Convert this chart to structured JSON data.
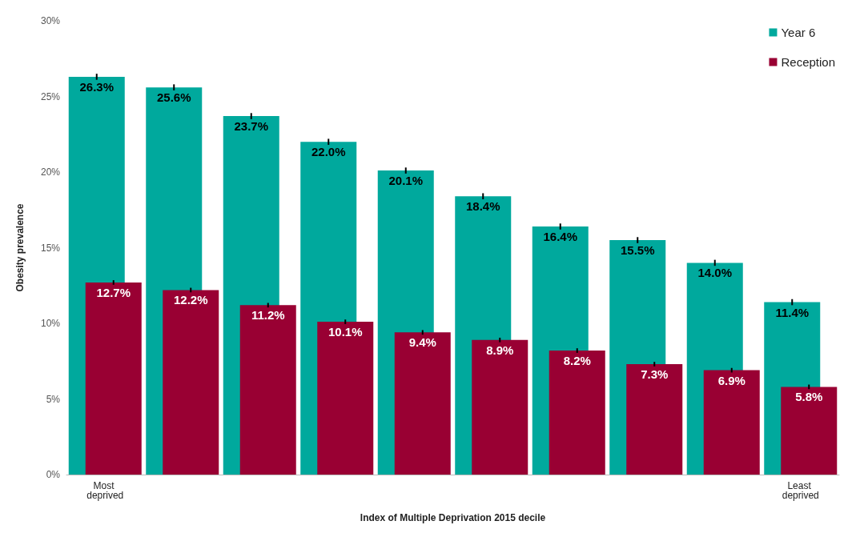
{
  "chart_data": {
    "type": "bar",
    "xlabel": "Index of Multiple Deprivation 2015 decile",
    "ylabel": "Obesity prevalence",
    "categories": [
      "Most deprived",
      null,
      null,
      null,
      null,
      null,
      null,
      null,
      null,
      "Least deprived"
    ],
    "series": [
      {
        "name": "Year 6",
        "color": "#00a99d",
        "values": [
          26.3,
          25.6,
          23.7,
          22.0,
          20.1,
          18.4,
          16.4,
          15.5,
          14.0,
          11.4
        ],
        "errors": [
          0.2,
          0.2,
          0.2,
          0.2,
          0.2,
          0.2,
          0.2,
          0.2,
          0.2,
          0.2
        ],
        "value_labels": [
          "26.3%",
          "25.6%",
          "23.7%",
          "22.0%",
          "20.1%",
          "18.4%",
          "16.4%",
          "15.5%",
          "14.0%",
          "11.4%"
        ]
      },
      {
        "name": "Reception",
        "color": "#990033",
        "values": [
          12.7,
          12.2,
          11.2,
          10.1,
          9.4,
          8.9,
          8.2,
          7.3,
          6.9,
          5.8
        ],
        "errors": [
          0.15,
          0.15,
          0.15,
          0.15,
          0.15,
          0.15,
          0.15,
          0.15,
          0.15,
          0.15
        ],
        "value_labels": [
          "12.7%",
          "12.2%",
          "11.2%",
          "10.1%",
          "9.4%",
          "8.9%",
          "8.2%",
          "7.3%",
          "6.9%",
          "5.8%"
        ]
      }
    ],
    "ylim": [
      0,
      30
    ],
    "yticks": [
      {
        "value": 0,
        "label": "0%"
      },
      {
        "value": 5,
        "label": "5%"
      },
      {
        "value": 10,
        "label": "10%"
      },
      {
        "value": 15,
        "label": "15%"
      },
      {
        "value": 20,
        "label": "20%"
      },
      {
        "value": 25,
        "label": "25%"
      },
      {
        "value": 30,
        "label": "30%"
      }
    ],
    "grid": false,
    "legend": "top right"
  }
}
